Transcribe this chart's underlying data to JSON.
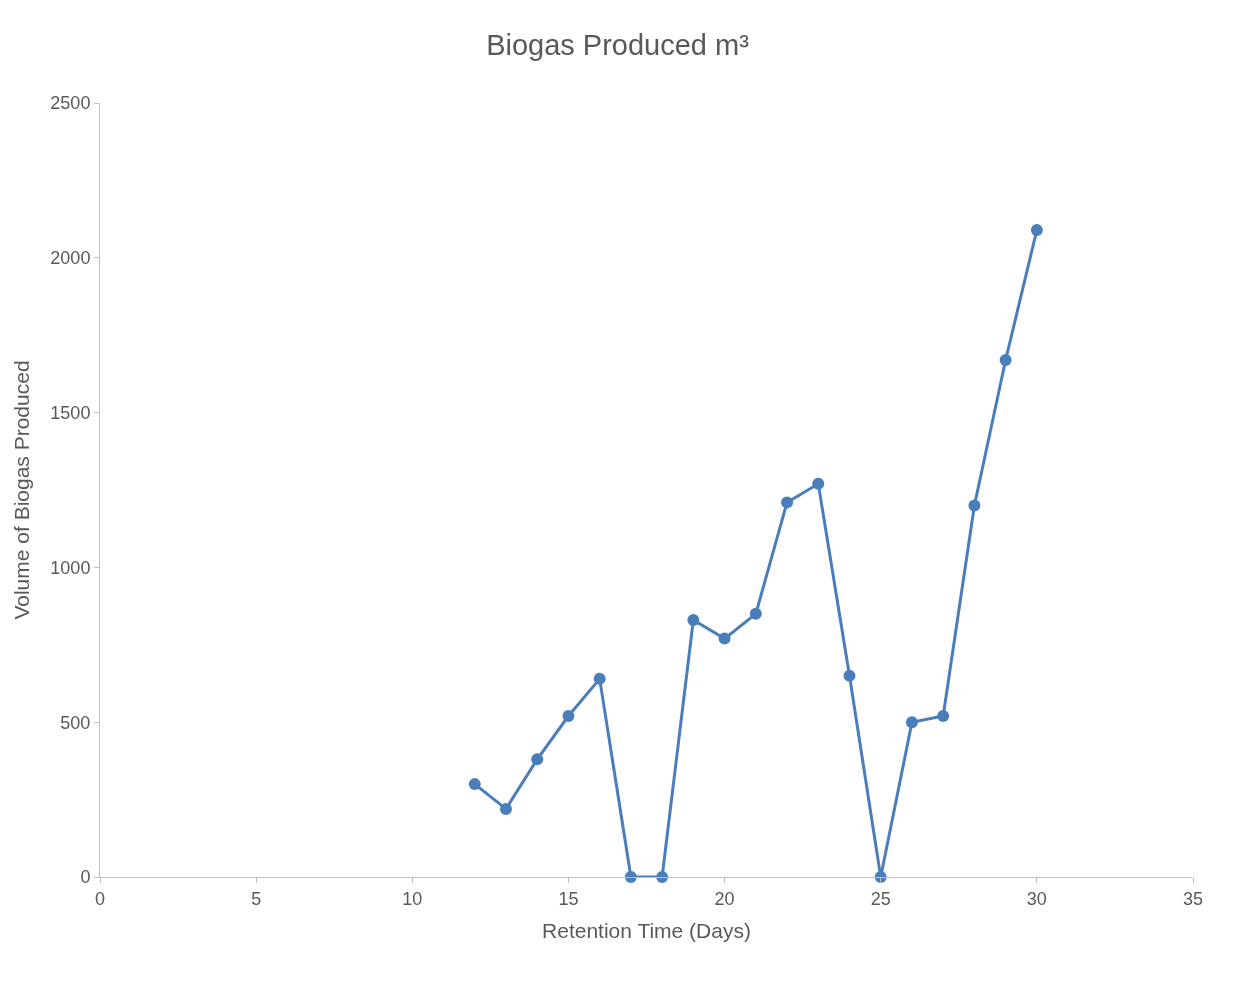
{
  "chart_data": {
    "type": "line",
    "title": "Biogas Produced m³",
    "xlabel": "Retention Time (Days)",
    "ylabel": "Volume of Biogas Produced",
    "x": [
      12,
      13,
      14,
      15,
      16,
      17,
      18,
      19,
      20,
      21,
      22,
      23,
      24,
      25,
      26,
      27,
      28,
      29,
      30
    ],
    "series": [
      {
        "color": "#4a7ebb",
        "values": [
          300,
          220,
          380,
          520,
          640,
          0,
          0,
          830,
          770,
          850,
          1210,
          1270,
          650,
          0,
          500,
          520,
          1200,
          1670,
          2090
        ]
      }
    ],
    "xlim": [
      0,
      35
    ],
    "xticks": [
      0,
      5,
      10,
      15,
      20,
      25,
      30,
      35
    ],
    "ylim": [
      0,
      2500
    ],
    "yticks": [
      0,
      500,
      1000,
      1500,
      2000,
      2500
    ],
    "grid": false,
    "marker": "circle",
    "line_style": "solid"
  }
}
